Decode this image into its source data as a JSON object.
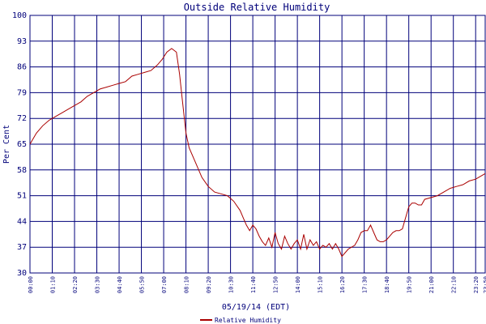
{
  "chart_data": {
    "type": "line",
    "title": "Outside Relative Humidity",
    "xlabel": "05/19/14 (EDT)",
    "ylabel": "Per Cent",
    "ylim": [
      30,
      100
    ],
    "yticks": [
      "100",
      "93",
      "86",
      "79",
      "72",
      "65",
      "58",
      "51",
      "44",
      "37",
      "30"
    ],
    "xticks": [
      "00:00",
      "01:10",
      "02:20",
      "03:30",
      "04:40",
      "05:50",
      "07:00",
      "08:10",
      "09:20",
      "10:30",
      "11:40",
      "12:50",
      "14:00",
      "15:10",
      "16:20",
      "17:30",
      "18:40",
      "19:50",
      "21:00",
      "22:10",
      "23:20",
      "23:50"
    ],
    "grid": true,
    "legend": "bottom-center",
    "series": [
      {
        "name": "Relative Humidity",
        "color": "#aa0000",
        "x": [
          "00:00",
          "00:20",
          "00:40",
          "01:00",
          "01:20",
          "01:40",
          "02:00",
          "02:20",
          "02:40",
          "03:00",
          "03:20",
          "03:40",
          "04:00",
          "04:20",
          "04:40",
          "05:00",
          "05:20",
          "05:40",
          "06:00",
          "06:20",
          "06:40",
          "06:55",
          "07:10",
          "07:25",
          "07:40",
          "07:50",
          "08:00",
          "08:10",
          "08:20",
          "08:40",
          "09:00",
          "09:20",
          "09:40",
          "10:00",
          "10:20",
          "10:40",
          "11:00",
          "11:10",
          "11:20",
          "11:30",
          "11:40",
          "11:50",
          "12:00",
          "12:10",
          "12:20",
          "12:30",
          "12:40",
          "12:50",
          "13:00",
          "13:10",
          "13:20",
          "13:30",
          "13:40",
          "13:50",
          "14:00",
          "14:10",
          "14:20",
          "14:30",
          "14:40",
          "14:50",
          "15:00",
          "15:10",
          "15:20",
          "15:30",
          "15:40",
          "15:50",
          "16:00",
          "16:10",
          "16:20",
          "16:30",
          "16:40",
          "16:50",
          "17:00",
          "17:10",
          "17:20",
          "17:30",
          "17:40",
          "17:50",
          "18:00",
          "18:10",
          "18:20",
          "18:30",
          "18:40",
          "18:50",
          "19:00",
          "19:10",
          "19:20",
          "19:30",
          "19:40",
          "19:50",
          "20:00",
          "20:10",
          "20:20",
          "20:30",
          "20:40",
          "21:00",
          "21:20",
          "21:40",
          "22:00",
          "22:20",
          "22:40",
          "23:00",
          "23:20",
          "23:40",
          "23:50"
        ],
        "values": [
          65,
          68,
          70,
          71.5,
          72.5,
          73.5,
          74.5,
          75.5,
          76.5,
          78,
          79,
          80,
          80.5,
          81,
          81.5,
          82,
          83.5,
          84,
          84.5,
          85,
          86.5,
          88,
          90,
          91,
          90,
          84,
          76,
          68,
          64,
          60,
          56,
          53.5,
          52,
          51.5,
          51,
          49.5,
          47,
          45,
          43,
          41.5,
          43,
          42,
          40,
          38.5,
          37.5,
          39.5,
          37,
          41,
          38,
          36.5,
          40,
          38,
          36.5,
          38,
          39,
          36.5,
          40.5,
          36.5,
          39,
          37.5,
          38.5,
          36.5,
          37.5,
          37,
          38,
          36.5,
          38,
          36.5,
          34.5,
          35.5,
          36.5,
          37,
          37.5,
          39,
          41,
          41.5,
          41.5,
          43,
          41,
          39,
          38.5,
          38.5,
          39,
          40,
          41,
          41.5,
          41.5,
          42,
          45,
          48,
          49,
          49,
          48.5,
          48.5,
          50,
          50.5,
          51,
          52,
          53,
          53.5,
          54,
          55,
          55.5,
          56.5,
          57
        ]
      }
    ]
  }
}
